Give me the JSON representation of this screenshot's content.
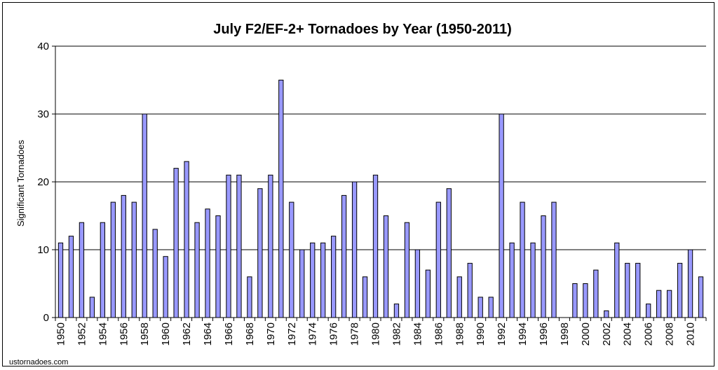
{
  "chart_data": {
    "type": "bar",
    "title": "July F2/EF-2+ Tornadoes by Year (1950-2011)",
    "xlabel": "",
    "ylabel": "Significant Tornadoes",
    "ylim": [
      0,
      40
    ],
    "yticks": [
      0,
      10,
      20,
      30,
      40
    ],
    "grid": true,
    "legend": "none",
    "bar_color": "#9999ff",
    "categories": [
      "1950",
      "1951",
      "1952",
      "1953",
      "1954",
      "1955",
      "1956",
      "1957",
      "1958",
      "1959",
      "1960",
      "1961",
      "1962",
      "1963",
      "1964",
      "1965",
      "1966",
      "1967",
      "1968",
      "1969",
      "1970",
      "1971",
      "1972",
      "1973",
      "1974",
      "1975",
      "1976",
      "1977",
      "1978",
      "1979",
      "1980",
      "1981",
      "1982",
      "1983",
      "1984",
      "1985",
      "1986",
      "1987",
      "1988",
      "1989",
      "1990",
      "1991",
      "1992",
      "1993",
      "1994",
      "1995",
      "1996",
      "1997",
      "1998",
      "1999",
      "2000",
      "2001",
      "2002",
      "2003",
      "2004",
      "2005",
      "2006",
      "2007",
      "2008",
      "2009",
      "2010",
      "2011"
    ],
    "x_tick_labels": [
      "1950",
      "1952",
      "1954",
      "1956",
      "1958",
      "1960",
      "1962",
      "1964",
      "1966",
      "1968",
      "1970",
      "1972",
      "1974",
      "1976",
      "1978",
      "1980",
      "1982",
      "1984",
      "1986",
      "1988",
      "1990",
      "1992",
      "1994",
      "1996",
      "1998",
      "2000",
      "2002",
      "2004",
      "2006",
      "2008",
      "2010"
    ],
    "values": [
      11,
      12,
      14,
      3,
      14,
      17,
      18,
      17,
      30,
      13,
      9,
      22,
      23,
      14,
      16,
      15,
      21,
      21,
      6,
      19,
      21,
      35,
      17,
      10,
      11,
      11,
      12,
      18,
      20,
      6,
      21,
      15,
      2,
      14,
      10,
      7,
      17,
      19,
      6,
      8,
      3,
      3,
      30,
      11,
      17,
      11,
      15,
      17,
      0,
      5,
      5,
      7,
      1,
      11,
      8,
      8,
      2,
      4,
      4,
      8,
      10,
      6
    ]
  },
  "source": "ustornadoes.com"
}
